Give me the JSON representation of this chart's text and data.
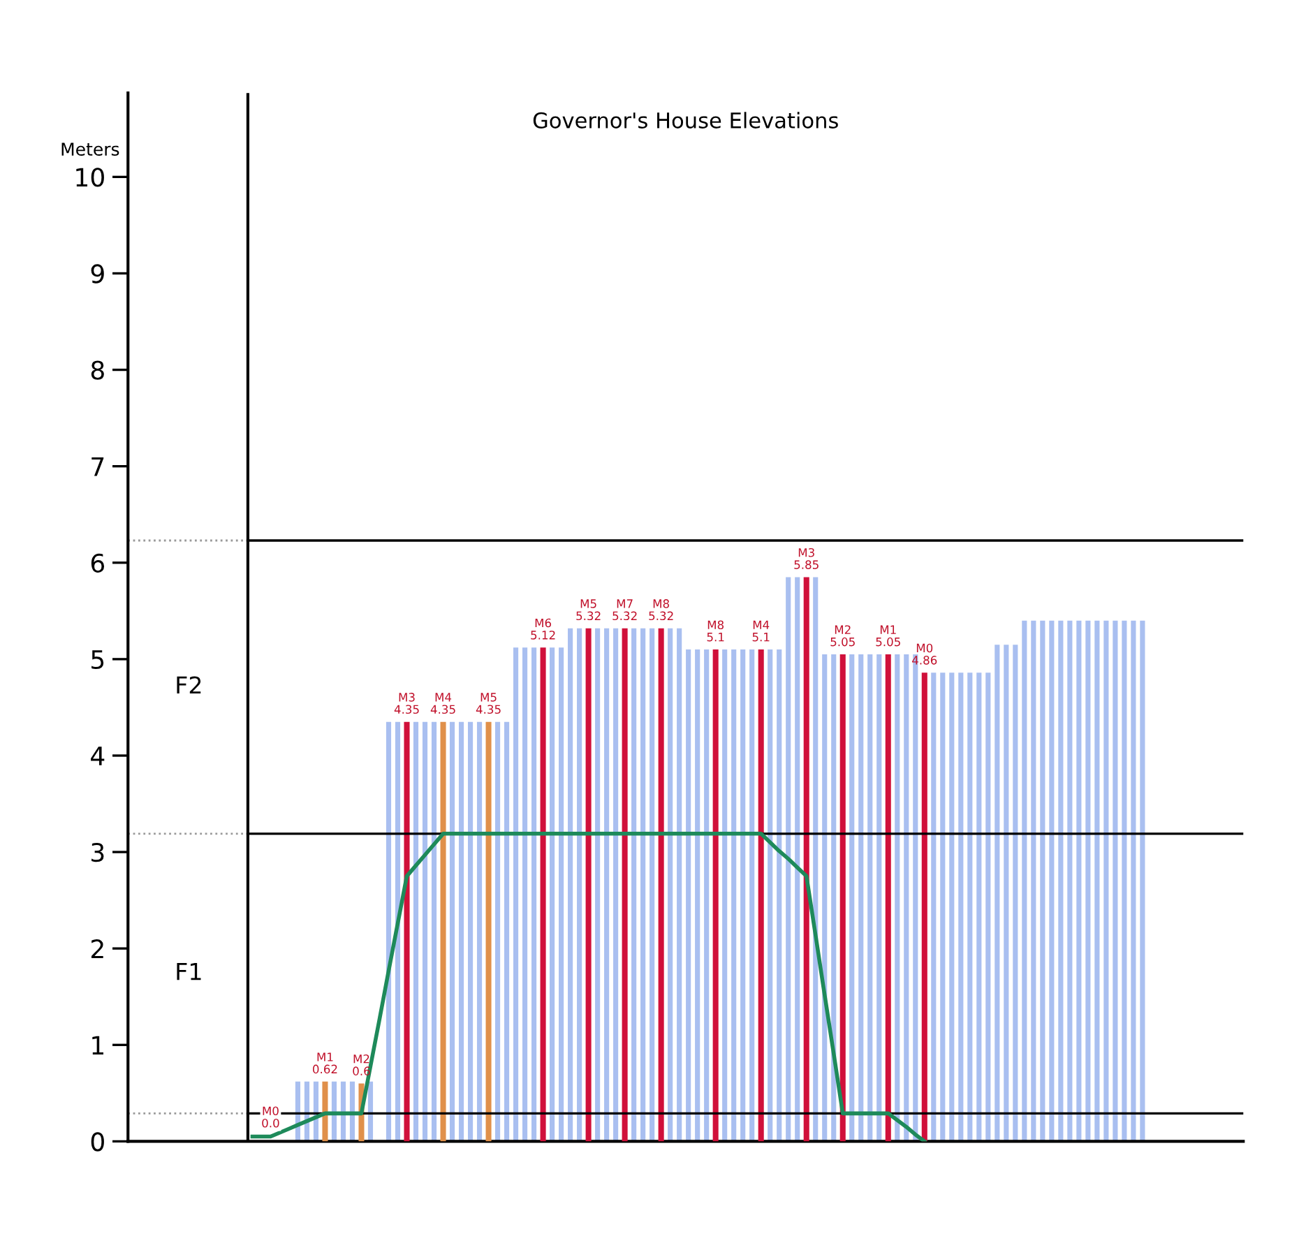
{
  "chart_data": {
    "type": "bar",
    "title": "Governor's House Elevations",
    "ylabel": "Meters",
    "categories": [
      null,
      null,
      null,
      null,
      null,
      null,
      null,
      null,
      null,
      null,
      null,
      null,
      null,
      null,
      null,
      null,
      null,
      null,
      null,
      null,
      null,
      null,
      null,
      null,
      null,
      null,
      null,
      null,
      null,
      null,
      null,
      null,
      null,
      null,
      null,
      null,
      null,
      null,
      null,
      null,
      null,
      null,
      null,
      null,
      null,
      null,
      null,
      null,
      null,
      null,
      null,
      null,
      null,
      null,
      null,
      null,
      null,
      null,
      null,
      null,
      null,
      null,
      null,
      null,
      null,
      null,
      null,
      null,
      null,
      null,
      null,
      null,
      null,
      null,
      null,
      null,
      null,
      null,
      null,
      null,
      null,
      null,
      null,
      null,
      null,
      null,
      null,
      null,
      null,
      null,
      null,
      null,
      null,
      null,
      null,
      null,
      null,
      null,
      null
    ],
    "series": [
      {
        "color": "#a9bff0",
        "values": [
          null,
          null,
          null,
          null,
          null,
          0.62,
          0.62,
          0.62,
          null,
          0.62,
          0.62,
          0.62,
          null,
          0.62,
          null,
          4.35,
          4.35,
          null,
          4.35,
          4.35,
          4.35,
          null,
          4.35,
          4.35,
          4.35,
          4.35,
          null,
          4.35,
          4.35,
          5.12,
          5.12,
          5.12,
          null,
          5.12,
          5.12,
          5.32,
          5.32,
          null,
          5.32,
          5.32,
          5.32,
          null,
          5.32,
          5.32,
          5.32,
          null,
          5.32,
          5.32,
          5.1,
          5.1,
          5.1,
          null,
          5.1,
          5.1,
          5.1,
          5.1,
          null,
          5.1,
          5.1,
          5.85,
          5.85,
          null,
          5.85,
          5.05,
          5.05,
          null,
          5.05,
          5.05,
          5.05,
          5.05,
          null,
          5.05,
          5.05,
          5.05,
          null,
          4.86,
          4.86,
          4.86,
          4.86,
          4.86,
          4.86,
          4.86,
          5.15,
          5.15,
          5.15,
          5.4,
          5.4,
          5.4,
          5.4,
          5.4,
          5.4,
          5.4,
          5.4,
          5.4,
          5.4,
          5.4,
          5.4,
          5.4,
          5.4
        ]
      },
      {
        "color": "#e0904a",
        "values": [
          null,
          null,
          0.0,
          null,
          null,
          null,
          null,
          null,
          0.62,
          null,
          null,
          null,
          0.6,
          null,
          null,
          null,
          null,
          null,
          null,
          null,
          null,
          4.35,
          null,
          null,
          null,
          null,
          4.35,
          null,
          null,
          null,
          null,
          null,
          null,
          null,
          null,
          null,
          null,
          null,
          null,
          null,
          null,
          null,
          null,
          null,
          null,
          null,
          null,
          null,
          null,
          null,
          null,
          null,
          null,
          null,
          null,
          null,
          null,
          null,
          null,
          null,
          null,
          null,
          null,
          null,
          null,
          null,
          null,
          null,
          null,
          null,
          null,
          null,
          null,
          null,
          null,
          null,
          null,
          null,
          null,
          null,
          null,
          null,
          null,
          null,
          null,
          null,
          null,
          null,
          null,
          null,
          null,
          null,
          null,
          null,
          null,
          null,
          null,
          null,
          null
        ],
        "value_labels": [
          null,
          null,
          "M0\n0.0",
          null,
          null,
          null,
          null,
          null,
          "M1\n0.62",
          null,
          null,
          null,
          "M2\n0.6",
          null,
          null,
          null,
          null,
          null,
          null,
          null,
          null,
          "M4\n4.35",
          null,
          null,
          null,
          null,
          "M5\n4.35",
          null,
          null,
          null,
          null,
          null,
          null,
          null,
          null,
          null,
          null,
          null,
          null,
          null,
          null,
          null,
          null,
          null,
          null,
          null,
          null,
          null,
          null,
          null,
          null,
          null,
          null,
          null,
          null,
          null,
          null,
          null,
          null,
          null,
          null,
          null,
          null,
          null,
          null,
          null,
          null,
          null,
          null,
          null,
          null,
          null,
          null,
          null,
          null,
          null,
          null,
          null,
          null,
          null,
          null,
          null,
          null,
          null,
          null,
          null,
          null,
          null,
          null,
          null,
          null,
          null,
          null,
          null,
          null,
          null,
          null,
          null,
          null
        ]
      },
      {
        "color": "#d0103a",
        "values": [
          null,
          null,
          null,
          null,
          null,
          null,
          null,
          null,
          null,
          null,
          null,
          null,
          null,
          null,
          null,
          null,
          null,
          4.35,
          null,
          null,
          null,
          null,
          null,
          null,
          null,
          null,
          null,
          null,
          null,
          null,
          null,
          null,
          5.12,
          null,
          null,
          null,
          null,
          5.32,
          null,
          null,
          null,
          5.32,
          null,
          null,
          null,
          5.32,
          null,
          null,
          null,
          null,
          null,
          5.1,
          null,
          null,
          null,
          null,
          5.1,
          null,
          null,
          null,
          null,
          5.85,
          null,
          null,
          null,
          5.05,
          null,
          null,
          null,
          null,
          5.05,
          null,
          null,
          null,
          4.86,
          null,
          null,
          null,
          null,
          null,
          null,
          null,
          null,
          null,
          null,
          null,
          null,
          null,
          null,
          null,
          null,
          null,
          null,
          null,
          null,
          null,
          null,
          null,
          null
        ],
        "value_labels": [
          null,
          null,
          null,
          null,
          null,
          null,
          null,
          null,
          null,
          null,
          null,
          null,
          null,
          null,
          null,
          null,
          null,
          "M3\n4.35",
          null,
          null,
          null,
          null,
          null,
          null,
          null,
          null,
          null,
          null,
          null,
          null,
          null,
          null,
          "M6\n5.12",
          null,
          null,
          null,
          null,
          "M5\n5.32",
          null,
          null,
          null,
          "M7\n5.32",
          null,
          null,
          null,
          "M8\n5.32",
          null,
          null,
          null,
          null,
          null,
          "M8\n5.1",
          null,
          null,
          null,
          null,
          "M4\n5.1",
          null,
          null,
          null,
          null,
          "M3\n5.85",
          null,
          null,
          null,
          "M2\n5.05",
          null,
          null,
          null,
          null,
          "M1\n5.05",
          null,
          null,
          null,
          "M0\n4.86",
          null,
          null,
          null,
          null,
          null,
          null,
          null,
          null,
          null,
          null,
          null,
          null,
          null,
          null,
          null,
          null,
          null,
          null,
          null,
          null,
          null,
          null,
          null,
          null
        ]
      },
      {
        "type": "line",
        "color": "#1e8a5a",
        "values": [
          0.05,
          0.05,
          0.05,
          0.09,
          0.13,
          0.17,
          0.21,
          0.25,
          0.29,
          0.29,
          0.29,
          0.29,
          0.29,
          0.78,
          1.27,
          1.77,
          2.26,
          2.75,
          2.86,
          2.97,
          3.08,
          3.19,
          3.19,
          3.19,
          3.19,
          3.19,
          3.19,
          3.19,
          3.19,
          3.19,
          3.19,
          3.19,
          3.19,
          3.19,
          3.19,
          3.19,
          3.19,
          3.19,
          3.19,
          3.19,
          3.19,
          3.19,
          3.19,
          3.19,
          3.19,
          3.19,
          3.19,
          3.19,
          3.19,
          3.19,
          3.19,
          3.19,
          3.19,
          3.19,
          3.19,
          3.19,
          3.19,
          3.1,
          3.01,
          2.93,
          2.84,
          2.75,
          2.14,
          1.52,
          0.91,
          0.29,
          0.29,
          0.29,
          0.29,
          0.29,
          0.29,
          0.22,
          0.15,
          0.07,
          0.0,
          null,
          null,
          null,
          null,
          null,
          null,
          null,
          null,
          null,
          null,
          null,
          null,
          null,
          null,
          null,
          null,
          null,
          null,
          null,
          null,
          null,
          null,
          null,
          null
        ]
      }
    ],
    "ylim": [
      0,
      10.87
    ],
    "yticks": [
      0,
      1,
      2,
      3,
      4,
      5,
      6,
      7,
      8,
      9,
      10
    ],
    "ref_lines": [
      {
        "axis": "y",
        "value": 0.29
      },
      {
        "axis": "y",
        "value": 3.19
      },
      {
        "axis": "y",
        "value": 6.23
      }
    ],
    "annotations": [
      "F1",
      "F2"
    ],
    "tick_labels": "y",
    "grid": false,
    "legend": false
  }
}
